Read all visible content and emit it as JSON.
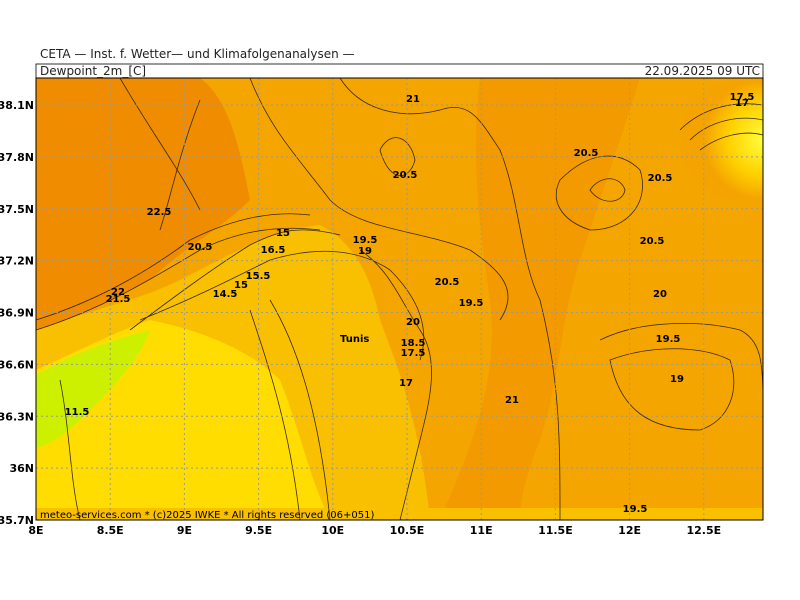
{
  "header": {
    "source": "CETA — Inst. f. Wetter— und Klimafolgenanalysen —",
    "title": "Dewpoint_2m_[C]",
    "date": "22.09.2025 09 UTC"
  },
  "map": {
    "place_label": "Tunis",
    "contour_labels": [
      "21",
      "20.5",
      "22.5",
      "20.5",
      "15",
      "16.5",
      "19.5",
      "19",
      "15.5",
      "15",
      "14.5",
      "20.5",
      "19.5",
      "20",
      "18.5",
      "17.5",
      "17",
      "21",
      "20.5",
      "20.5",
      "20.5",
      "20",
      "19.5",
      "19",
      "19.5",
      "11.5",
      "22",
      "21.5",
      "17.5",
      "17"
    ],
    "footer": "meteo-services.com * (c)2025 IWKE * All rights reserved (06+051)"
  },
  "x_axis": {
    "ticks": [
      {
        "value": 8,
        "label": "8E"
      },
      {
        "value": 8.5,
        "label": "8.5E"
      },
      {
        "value": 9,
        "label": "9E"
      },
      {
        "value": 9.5,
        "label": "9.5E"
      },
      {
        "value": 10,
        "label": "10E"
      },
      {
        "value": 10.5,
        "label": "10.5E"
      },
      {
        "value": 11,
        "label": "11E"
      },
      {
        "value": 11.5,
        "label": "11.5E"
      },
      {
        "value": 12,
        "label": "12E"
      },
      {
        "value": 12.5,
        "label": "12.5E"
      }
    ]
  },
  "y_axis": {
    "ticks": [
      {
        "value": 38.1,
        "label": "38.1N"
      },
      {
        "value": 37.8,
        "label": "37.8N"
      },
      {
        "value": 37.5,
        "label": "37.5N"
      },
      {
        "value": 37.2,
        "label": "37.2N"
      },
      {
        "value": 36.9,
        "label": "36.9N"
      },
      {
        "value": 36.6,
        "label": "36.6N"
      },
      {
        "value": 36.3,
        "label": "36.3N"
      },
      {
        "value": 36,
        "label": "36N"
      },
      {
        "value": 35.7,
        "label": "35.7N"
      }
    ]
  }
}
